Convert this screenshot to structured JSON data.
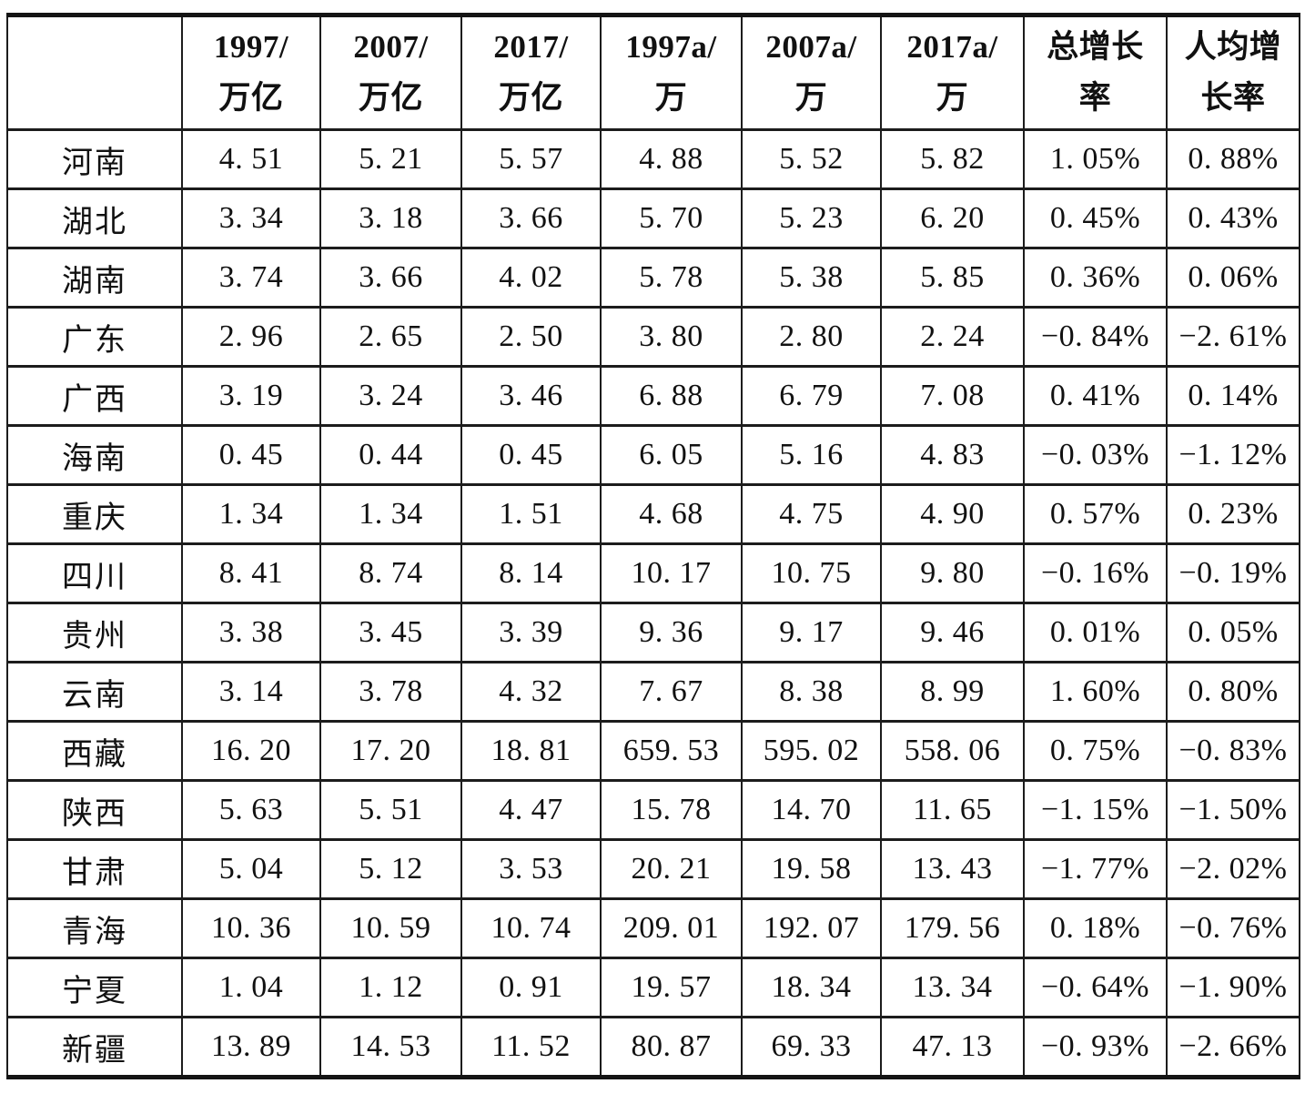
{
  "table": {
    "header": {
      "cols": [
        {
          "line1": "",
          "line2": ""
        },
        {
          "line1": "1997/",
          "line2": "万亿"
        },
        {
          "line1": "2007/",
          "line2": "万亿"
        },
        {
          "line1": "2017/",
          "line2": "万亿"
        },
        {
          "line1": "1997a/",
          "line2": "万"
        },
        {
          "line1": "2007a/",
          "line2": "万"
        },
        {
          "line1": "2017a/",
          "line2": "万"
        },
        {
          "line1": "总增长",
          "line2": "率"
        },
        {
          "line1": "人均增",
          "line2": "长率"
        }
      ]
    },
    "rows": [
      {
        "province": "河南",
        "values": [
          "4. 51",
          "5. 21",
          "5. 57",
          "4. 88",
          "5. 52",
          "5. 82",
          "1. 05%",
          "0. 88%"
        ]
      },
      {
        "province": "湖北",
        "values": [
          "3. 34",
          "3. 18",
          "3. 66",
          "5. 70",
          "5. 23",
          "6. 20",
          "0. 45%",
          "0. 43%"
        ]
      },
      {
        "province": "湖南",
        "values": [
          "3. 74",
          "3. 66",
          "4. 02",
          "5. 78",
          "5. 38",
          "5. 85",
          "0. 36%",
          "0. 06%"
        ]
      },
      {
        "province": "广东",
        "values": [
          "2. 96",
          "2. 65",
          "2. 50",
          "3. 80",
          "2. 80",
          "2. 24",
          "−0. 84%",
          "−2. 61%"
        ]
      },
      {
        "province": "广西",
        "values": [
          "3. 19",
          "3. 24",
          "3. 46",
          "6. 88",
          "6. 79",
          "7. 08",
          "0. 41%",
          "0. 14%"
        ]
      },
      {
        "province": "海南",
        "values": [
          "0. 45",
          "0. 44",
          "0. 45",
          "6. 05",
          "5. 16",
          "4. 83",
          "−0. 03%",
          "−1. 12%"
        ]
      },
      {
        "province": "重庆",
        "values": [
          "1. 34",
          "1. 34",
          "1. 51",
          "4. 68",
          "4. 75",
          "4. 90",
          "0. 57%",
          "0. 23%"
        ]
      },
      {
        "province": "四川",
        "values": [
          "8. 41",
          "8. 74",
          "8. 14",
          "10. 17",
          "10. 75",
          "9. 80",
          "−0. 16%",
          "−0. 19%"
        ]
      },
      {
        "province": "贵州",
        "values": [
          "3. 38",
          "3. 45",
          "3. 39",
          "9. 36",
          "9. 17",
          "9. 46",
          "0. 01%",
          "0. 05%"
        ]
      },
      {
        "province": "云南",
        "values": [
          "3. 14",
          "3. 78",
          "4. 32",
          "7. 67",
          "8. 38",
          "8. 99",
          "1. 60%",
          "0. 80%"
        ]
      },
      {
        "province": "西藏",
        "values": [
          "16. 20",
          "17. 20",
          "18. 81",
          "659. 53",
          "595. 02",
          "558. 06",
          "0. 75%",
          "−0. 83%"
        ]
      },
      {
        "province": "陕西",
        "values": [
          "5. 63",
          "5. 51",
          "4. 47",
          "15. 78",
          "14. 70",
          "11. 65",
          "−1. 15%",
          "−1. 50%"
        ]
      },
      {
        "province": "甘肃",
        "values": [
          "5. 04",
          "5. 12",
          "3. 53",
          "20. 21",
          "19. 58",
          "13. 43",
          "−1. 77%",
          "−2. 02%"
        ]
      },
      {
        "province": "青海",
        "values": [
          "10. 36",
          "10. 59",
          "10. 74",
          "209. 01",
          "192. 07",
          "179. 56",
          "0. 18%",
          "−0. 76%"
        ]
      },
      {
        "province": "宁夏",
        "values": [
          "1. 04",
          "1. 12",
          "0. 91",
          "19. 57",
          "18. 34",
          "13. 34",
          "−0. 64%",
          "−1. 90%"
        ]
      },
      {
        "province": "新疆",
        "values": [
          "13. 89",
          "14. 53",
          "11. 52",
          "80. 87",
          "69. 33",
          "47. 13",
          "−0. 93%",
          "−2. 66%"
        ]
      }
    ]
  }
}
